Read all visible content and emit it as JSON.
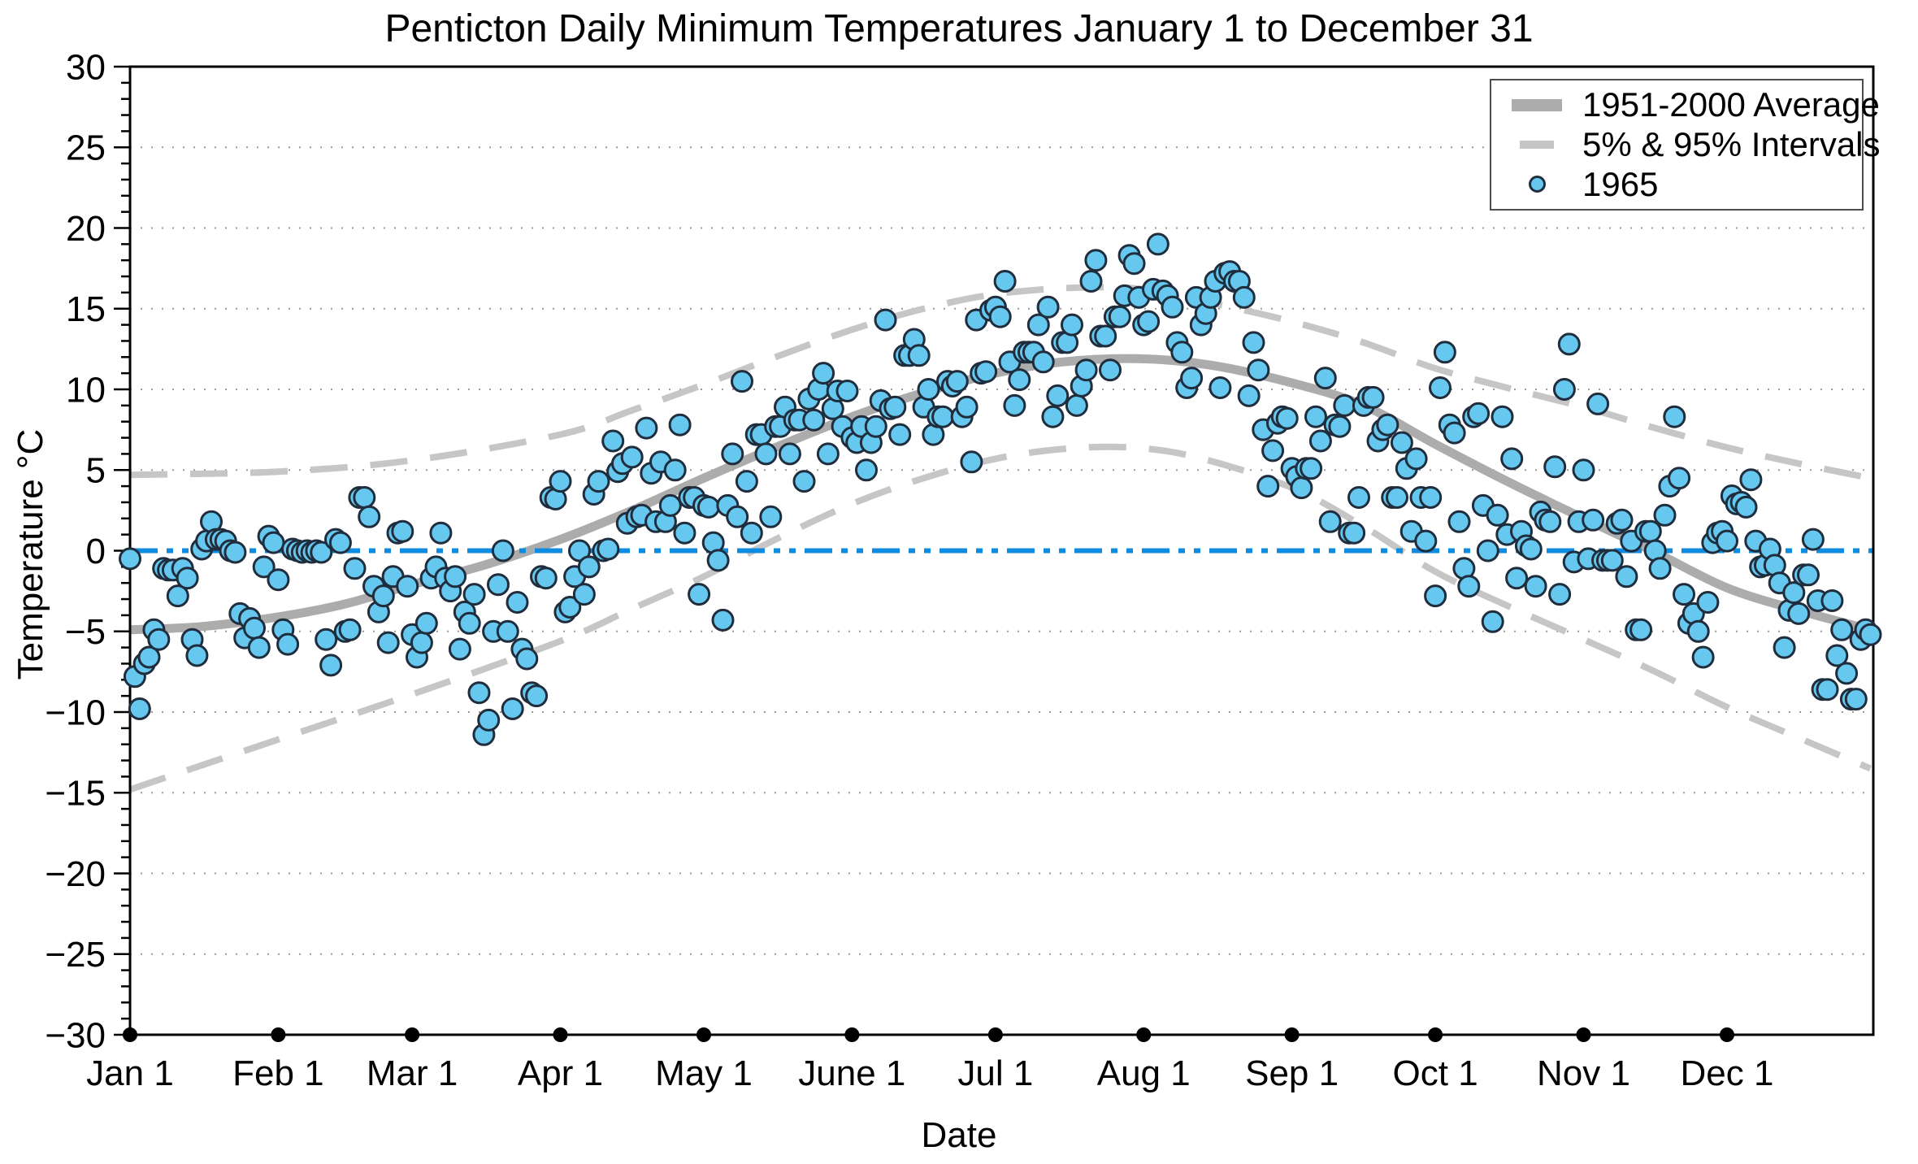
{
  "meta": {
    "title": "Penticton Daily Minimum Temperatures January 1 to December 31",
    "xlabel": "Date",
    "ylabel": "Temperature °C"
  },
  "legend": {
    "items": [
      {
        "label": "1951-2000 Average",
        "swatch": "thick-gray-line"
      },
      {
        "label": "5% & 95% Intervals",
        "swatch": "gray-dash"
      },
      {
        "label": "1965",
        "swatch": "blue-circle-marker"
      }
    ]
  },
  "colors": {
    "scatter_fill": "#66C7EF",
    "scatter_stroke": "#1f2d3d",
    "average_line": "#ACACAC",
    "interval_line": "#C6C6C6",
    "zero_line": "#0F8BE0",
    "gridline": "#9a9a9a",
    "axis": "#000000",
    "background": "#ffffff"
  },
  "axis": {
    "y_tick_labels": [
      "30",
      "25",
      "20",
      "15",
      "10",
      "5",
      "0",
      "−5",
      "−10",
      "−15",
      "−20",
      "−25",
      "−30"
    ],
    "y_tick_values": [
      30,
      25,
      20,
      15,
      10,
      5,
      0,
      -5,
      -10,
      -15,
      -20,
      -25,
      -30
    ],
    "y_minor_step": 1,
    "x_tick_labels": [
      "Jan 1",
      "Feb 1",
      "Mar 1",
      "Apr 1",
      "May 1",
      "June 1",
      "Jul 1",
      "Aug 1",
      "Sep 1",
      "Oct 1",
      "Nov 1",
      "Dec 1"
    ],
    "x_tick_days": [
      1,
      32,
      60,
      91,
      121,
      152,
      182,
      213,
      244,
      274,
      305,
      335
    ]
  },
  "chart_data": {
    "type": "scatter",
    "title": "Penticton Daily Minimum Temperatures January 1 to December 31",
    "xlabel": "Date",
    "ylabel": "Temperature °C",
    "x_unit": "day_of_year",
    "xlim": [
      1,
      365
    ],
    "ylim": [
      -30,
      30
    ],
    "grid": "dotted horizontal every 5 degrees",
    "legend_position": "upper right",
    "zero_reference_line": 0,
    "series": [
      {
        "name": "1951-2000 Average",
        "type": "line",
        "style": "thick solid gray",
        "points": [
          [
            1,
            -4.9
          ],
          [
            16,
            -4.7
          ],
          [
            32,
            -4.1
          ],
          [
            46,
            -3.3
          ],
          [
            60,
            -2.1
          ],
          [
            75,
            -0.9
          ],
          [
            91,
            0.7
          ],
          [
            106,
            2.5
          ],
          [
            121,
            4.5
          ],
          [
            136,
            6.4
          ],
          [
            152,
            8.3
          ],
          [
            167,
            9.8
          ],
          [
            182,
            11.0
          ],
          [
            196,
            11.7
          ],
          [
            212,
            11.9
          ],
          [
            227,
            11.5
          ],
          [
            244,
            10.4
          ],
          [
            259,
            9.0
          ],
          [
            274,
            6.6
          ],
          [
            289,
            4.3
          ],
          [
            305,
            2.0
          ],
          [
            320,
            -0.1
          ],
          [
            335,
            -2.3
          ],
          [
            350,
            -3.7
          ],
          [
            365,
            -4.9
          ]
        ]
      },
      {
        "name": "95% Interval",
        "type": "line",
        "style": "dashed gray",
        "points": [
          [
            1,
            4.7
          ],
          [
            32,
            4.9
          ],
          [
            60,
            5.6
          ],
          [
            91,
            7.2
          ],
          [
            106,
            8.7
          ],
          [
            121,
            10.3
          ],
          [
            136,
            12.0
          ],
          [
            152,
            13.7
          ],
          [
            167,
            15.0
          ],
          [
            182,
            15.9
          ],
          [
            199,
            16.3
          ],
          [
            213,
            16.2
          ],
          [
            228,
            15.3
          ],
          [
            244,
            14.2
          ],
          [
            259,
            12.9
          ],
          [
            274,
            11.3
          ],
          [
            289,
            10.1
          ],
          [
            305,
            8.9
          ],
          [
            320,
            7.6
          ],
          [
            335,
            6.4
          ],
          [
            350,
            5.4
          ],
          [
            365,
            4.5
          ]
        ]
      },
      {
        "name": "5% Interval",
        "type": "line",
        "style": "dashed gray",
        "points": [
          [
            1,
            -14.8
          ],
          [
            32,
            -11.7
          ],
          [
            60,
            -8.9
          ],
          [
            91,
            -5.6
          ],
          [
            106,
            -3.6
          ],
          [
            121,
            -1.6
          ],
          [
            136,
            0.7
          ],
          [
            152,
            2.9
          ],
          [
            167,
            4.5
          ],
          [
            182,
            5.7
          ],
          [
            196,
            6.3
          ],
          [
            210,
            6.4
          ],
          [
            224,
            5.8
          ],
          [
            244,
            3.9
          ],
          [
            259,
            1.5
          ],
          [
            274,
            -1.3
          ],
          [
            289,
            -3.4
          ],
          [
            305,
            -5.5
          ],
          [
            320,
            -7.5
          ],
          [
            335,
            -9.7
          ],
          [
            350,
            -11.6
          ],
          [
            365,
            -13.5
          ]
        ]
      },
      {
        "name": "1965",
        "type": "scatter",
        "style": "light blue filled circles with dark edge",
        "first_day": 1,
        "values": [
          -0.5,
          -7.8,
          -9.8,
          -7.0,
          -6.6,
          -4.9,
          -5.5,
          -1.1,
          -1.2,
          -1.2,
          -2.8,
          -1.1,
          -1.7,
          -5.5,
          -6.5,
          0.1,
          0.6,
          1.8,
          0.7,
          0.7,
          0.6,
          0.0,
          -0.1,
          -3.9,
          -5.4,
          -4.2,
          -4.8,
          -6.0,
          -1.0,
          0.9,
          0.5,
          -1.8,
          -4.9,
          -5.8,
          0.1,
          0.0,
          -0.1,
          0.0,
          -0.1,
          0.0,
          -0.1,
          -5.5,
          -7.1,
          0.7,
          0.5,
          -5.0,
          -4.9,
          -1.1,
          3.3,
          3.3,
          2.1,
          -2.2,
          -3.8,
          -2.8,
          -5.7,
          -1.6,
          1.1,
          1.2,
          -2.2,
          -5.2,
          -6.6,
          -5.7,
          -4.5,
          -1.7,
          -1.0,
          1.1,
          -1.7,
          -2.5,
          -1.6,
          -6.1,
          -3.8,
          -4.5,
          -2.7,
          -8.8,
          -11.4,
          -10.5,
          -5.0,
          -2.1,
          0.0,
          -5.0,
          -9.8,
          -3.2,
          -6.1,
          -6.7,
          -8.8,
          -9.0,
          -1.6,
          -1.7,
          3.3,
          3.2,
          4.3,
          -3.8,
          -3.5,
          -1.6,
          0.0,
          -2.7,
          -1.0,
          3.5,
          4.3,
          0.0,
          0.1,
          6.8,
          4.9,
          5.4,
          1.7,
          5.8,
          2.1,
          2.2,
          7.6,
          4.8,
          1.8,
          5.5,
          1.8,
          2.8,
          5.0,
          7.8,
          1.1,
          3.3,
          3.3,
          -2.7,
          2.8,
          2.7,
          0.5,
          -0.6,
          -4.3,
          2.8,
          6.0,
          2.1,
          10.5,
          4.3,
          1.1,
          7.2,
          7.2,
          6.0,
          2.1,
          7.7,
          7.7,
          8.9,
          6.0,
          8.1,
          8.1,
          4.3,
          9.4,
          8.1,
          10.0,
          11.0,
          6.0,
          8.8,
          9.9,
          7.7,
          9.9,
          7.0,
          6.7,
          7.7,
          5.0,
          6.7,
          7.7,
          9.3,
          14.3,
          8.8,
          8.9,
          7.2,
          12.1,
          12.1,
          13.1,
          12.1,
          8.9,
          10.0,
          7.2,
          8.3,
          8.3,
          10.5,
          10.2,
          10.5,
          8.3,
          8.9,
          5.5,
          14.3,
          11.0,
          11.1,
          14.9,
          15.1,
          14.5,
          16.7,
          11.7,
          9.0,
          10.6,
          12.3,
          12.3,
          12.3,
          14.0,
          11.7,
          15.1,
          8.3,
          9.6,
          12.9,
          12.9,
          14.0,
          9.0,
          10.2,
          11.2,
          16.7,
          18.0,
          13.3,
          13.3,
          11.2,
          14.5,
          14.5,
          15.8,
          18.3,
          17.8,
          15.7,
          14.0,
          14.2,
          16.2,
          19.0,
          16.1,
          15.8,
          15.1,
          12.9,
          12.3,
          10.1,
          10.7,
          15.7,
          14.0,
          14.7,
          15.7,
          16.7,
          10.1,
          17.2,
          17.3,
          16.7,
          16.7,
          15.7,
          9.6,
          12.9,
          11.2,
          7.5,
          4.0,
          6.2,
          7.9,
          8.3,
          8.2,
          5.1,
          4.6,
          3.9,
          5.1,
          5.1,
          8.3,
          6.8,
          10.7,
          1.8,
          7.8,
          7.7,
          9.0,
          1.1,
          1.1,
          3.3,
          9.0,
          9.5,
          9.5,
          6.8,
          7.5,
          7.8,
          3.3,
          3.3,
          6.7,
          5.1,
          1.2,
          5.7,
          3.3,
          0.6,
          3.3,
          -2.8,
          10.1,
          12.3,
          7.8,
          7.3,
          1.8,
          -1.1,
          -2.2,
          8.3,
          8.5,
          2.8,
          0.0,
          -4.4,
          2.2,
          8.3,
          1.0,
          5.7,
          -1.7,
          1.2,
          0.3,
          0.1,
          -2.2,
          2.4,
          1.9,
          1.8,
          5.2,
          -2.7,
          10.0,
          12.8,
          -0.7,
          1.8,
          5.0,
          -0.5,
          1.9,
          9.1,
          -0.6,
          -0.6,
          -0.6,
          1.7,
          1.9,
          -1.6,
          0.6,
          -4.9,
          -4.9,
          1.2,
          1.2,
          0.0,
          -1.1,
          2.2,
          4.0,
          8.3,
          4.5,
          -2.7,
          -4.5,
          -3.9,
          -5.0,
          -6.6,
          -3.2,
          0.5,
          1.1,
          1.2,
          0.6,
          3.4,
          2.9,
          3.0,
          2.7,
          4.4,
          0.6,
          -1.0,
          -0.9,
          0.1,
          -0.9,
          -2.0,
          -6.0,
          -3.7,
          -2.6,
          -3.9,
          -1.5,
          -1.5,
          0.7,
          -3.1,
          -8.6,
          -8.6,
          -3.1,
          -6.5,
          -4.9,
          -7.6,
          -9.2,
          -9.2,
          -5.5,
          -4.9,
          -5.2
        ]
      }
    ]
  }
}
